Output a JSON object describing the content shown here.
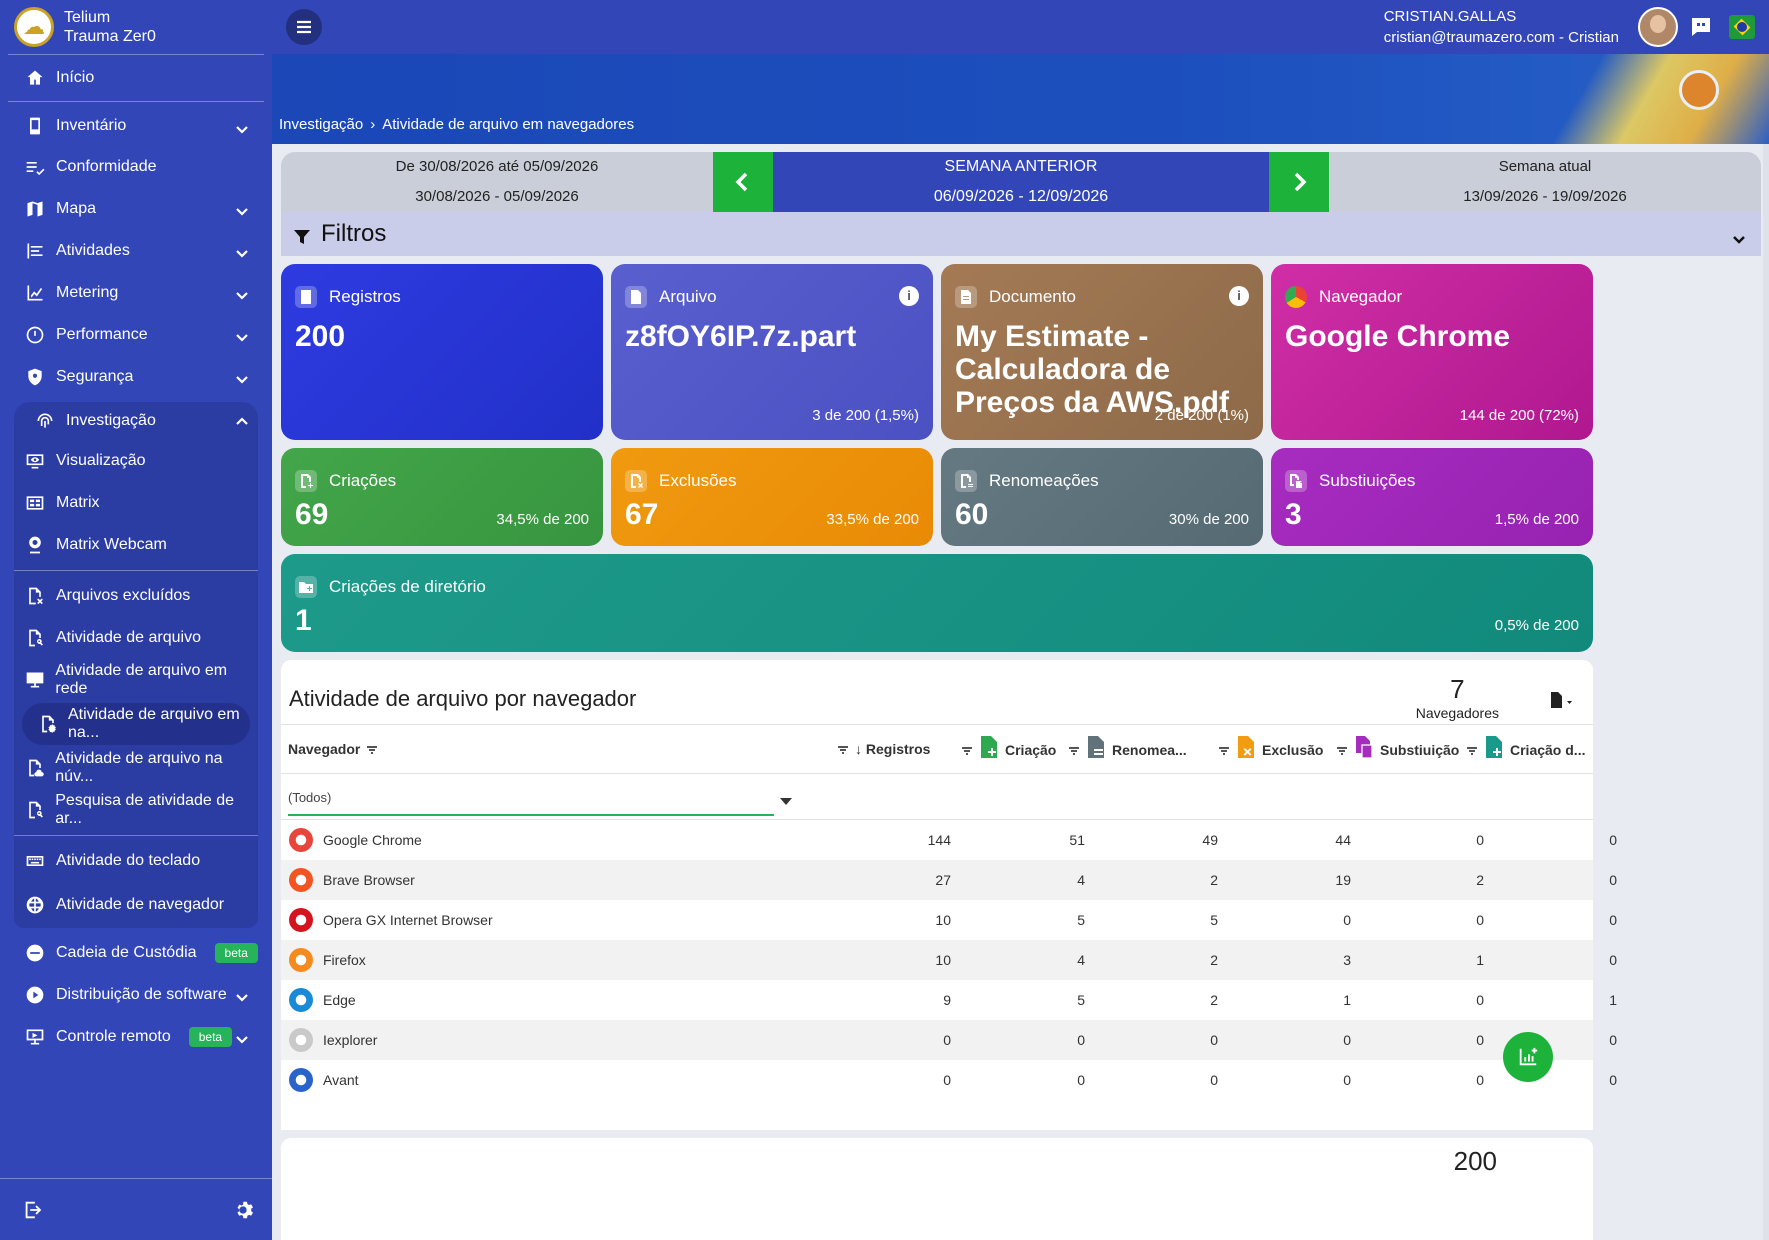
{
  "brand": {
    "line1": "Telium",
    "line2": "Trauma Zer0"
  },
  "sidebar": {
    "items": [
      {
        "label": "Início",
        "icon": "home-icon"
      },
      {
        "label": "Inventário",
        "icon": "phone-icon",
        "chevron": true
      },
      {
        "label": "Conformidade",
        "icon": "checklist-icon"
      },
      {
        "label": "Mapa",
        "icon": "map-icon",
        "chevron": true
      },
      {
        "label": "Atividades",
        "icon": "activity-icon",
        "chevron": true
      },
      {
        "label": "Metering",
        "icon": "chart-icon",
        "chevron": true
      },
      {
        "label": "Performance",
        "icon": "gauge-icon",
        "chevron": true
      },
      {
        "label": "Segurança",
        "icon": "shield-icon",
        "chevron": true
      }
    ],
    "group": {
      "label": "Investigação",
      "subitems": [
        "Visualização",
        "Matrix",
        "Matrix Webcam"
      ],
      "files": [
        "Arquivos excluídos",
        "Atividade de arquivo",
        "Atividade de arquivo em rede",
        "Atividade de arquivo em na...",
        "Atividade de arquivo na núv...",
        "Pesquisa de atividade de ar..."
      ],
      "more": [
        "Atividade do teclado",
        "Atividade de navegador"
      ]
    },
    "bottom_items": [
      {
        "label": "Cadeia de Custódia",
        "badge": "beta"
      },
      {
        "label": "Distribuição de software",
        "chevron": true
      },
      {
        "label": "Controle remoto",
        "badge": "beta",
        "chevron": true
      }
    ]
  },
  "user": {
    "name": "CRISTIAN.GALLAS",
    "email": "cristian@traumazero.com - Cristian"
  },
  "breadcrumb": {
    "parent": "Investigação",
    "current": "Atividade de arquivo em navegadores"
  },
  "week": {
    "prev_line1": "De 30/08/2026 até 05/09/2026",
    "prev_line2": "30/08/2026 - 05/09/2026",
    "mid_line1": "SEMANA ANTERIOR",
    "mid_line2": "06/09/2026  -  12/09/2026",
    "next_line1": "Semana atual",
    "next_line2": "13/09/2026 - 19/09/2026"
  },
  "filters": {
    "label": "Filtros"
  },
  "cards": {
    "registros": {
      "title": "Registros",
      "value": "200"
    },
    "arquivo": {
      "title": "Arquivo",
      "value": "z8fOY6IP.7z.part",
      "foot": "3 de 200 (1,5%)"
    },
    "documento": {
      "title": "Documento",
      "value": "My Estimate - Calculadora de Preços da AWS.pdf",
      "foot": "2 de 200 (1%)"
    },
    "navegador": {
      "title": "Navegador",
      "value": "Google Chrome",
      "foot": "144 de 200 (72%)"
    },
    "criacoes": {
      "title": "Criações",
      "value": "69",
      "foot": "34,5% de 200"
    },
    "exclusoes": {
      "title": "Exclusões",
      "value": "67",
      "foot": "33,5% de 200"
    },
    "renomeacoes": {
      "title": "Renomeações",
      "value": "60",
      "foot": "30% de 200"
    },
    "substituicoes": {
      "title": "Substiuições",
      "value": "3",
      "foot": "1,5% de 200"
    },
    "diretorio": {
      "title": "Criações de diretório",
      "value": "1",
      "foot": "0,5% de 200"
    }
  },
  "table": {
    "title": "Atividade de arquivo por navegador",
    "count": "7",
    "count_label": "Navegadores",
    "columns": {
      "navegador": "Navegador",
      "registros": "↓ Registros",
      "criacao": "Criação",
      "renomeacao": "Renomea...",
      "exclusao": "Exclusão",
      "substituicao": "Substiuição",
      "criacao_dir": "Criação d..."
    },
    "filter_value": "(Todos)",
    "rows": [
      {
        "name": "Google Chrome",
        "icon": "chrome-icon",
        "color": "#e8453c",
        "v": [
          "144",
          "51",
          "49",
          "44",
          "0",
          "0"
        ]
      },
      {
        "name": "Brave Browser",
        "icon": "brave-icon",
        "color": "#f25522",
        "v": [
          "27",
          "4",
          "2",
          "19",
          "2",
          "0"
        ]
      },
      {
        "name": "Opera GX Internet Browser",
        "icon": "opera-icon",
        "color": "#d4151f",
        "v": [
          "10",
          "5",
          "5",
          "0",
          "0",
          "0"
        ]
      },
      {
        "name": "Firefox",
        "icon": "firefox-icon",
        "color": "#f58a1f",
        "v": [
          "10",
          "4",
          "2",
          "3",
          "1",
          "0"
        ]
      },
      {
        "name": "Edge",
        "icon": "edge-icon",
        "color": "#1a8ad6",
        "v": [
          "9",
          "5",
          "2",
          "1",
          "0",
          "1"
        ]
      },
      {
        "name": "Iexplorer",
        "icon": "gear-icon",
        "color": "#c9c9c9",
        "v": [
          "0",
          "0",
          "0",
          "0",
          "0",
          "0"
        ]
      },
      {
        "name": "Avant",
        "icon": "avant-icon",
        "color": "#2a63c9",
        "v": [
          "0",
          "0",
          "0",
          "0",
          "0",
          "0"
        ]
      }
    ]
  },
  "panel2": {
    "count": "200"
  }
}
